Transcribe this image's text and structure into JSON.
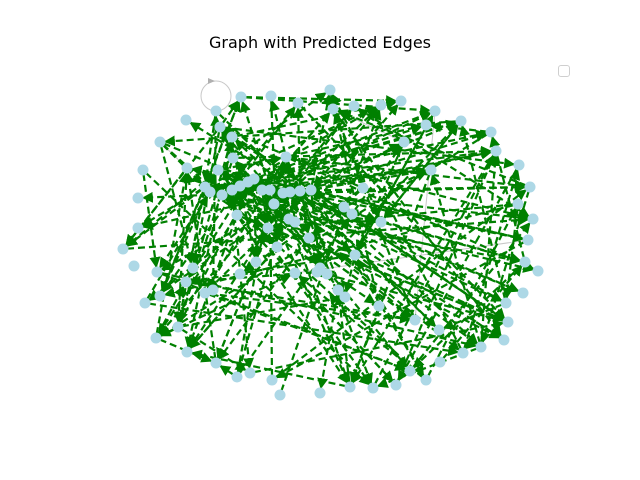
{
  "title": "Graph with Predicted Edges",
  "colors": {
    "node": "#add8e6",
    "predicted_edge": "#008000",
    "existing_edge": "#c8c8c8",
    "background": "#ffffff"
  },
  "legend": {
    "entries": []
  },
  "graph": {
    "node_count": 100,
    "edge_style": "dashed arrows",
    "has_self_loop": true
  }
}
